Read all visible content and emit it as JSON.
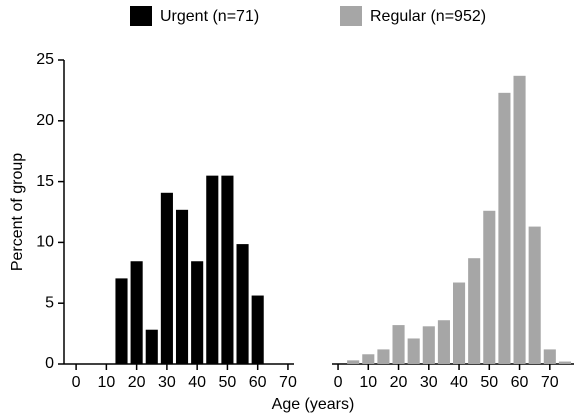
{
  "chart_data": {
    "type": "bar",
    "y_label": "Percent of group",
    "x_label": "Age (years)",
    "ylim": [
      0,
      25
    ],
    "yticks": [
      0,
      5,
      10,
      15,
      20,
      25
    ],
    "legend": "top",
    "series": [
      {
        "name": "Urgent (n=71)",
        "color": "#000000",
        "x": [
          15,
          20,
          25,
          30,
          35,
          40,
          45,
          50,
          55,
          60
        ],
        "values": [
          7.04,
          8.45,
          2.82,
          14.08,
          12.68,
          8.45,
          15.49,
          15.49,
          9.86,
          5.63
        ],
        "xlim": [
          -4,
          72
        ],
        "xticks": [
          0,
          10,
          20,
          30,
          40,
          50,
          60,
          70
        ]
      },
      {
        "name": "Regular (n=952)",
        "color": "#a6a6a6",
        "x": [
          5,
          10,
          15,
          20,
          25,
          30,
          35,
          40,
          45,
          50,
          55,
          60,
          65,
          70,
          75
        ],
        "values": [
          0.3,
          0.8,
          1.2,
          3.2,
          2.1,
          3.1,
          3.6,
          6.7,
          8.7,
          12.6,
          22.3,
          23.7,
          11.3,
          1.2,
          0.2
        ],
        "xlim": [
          -2,
          78
        ],
        "xticks": [
          0,
          10,
          20,
          30,
          40,
          50,
          60,
          70
        ]
      }
    ]
  }
}
